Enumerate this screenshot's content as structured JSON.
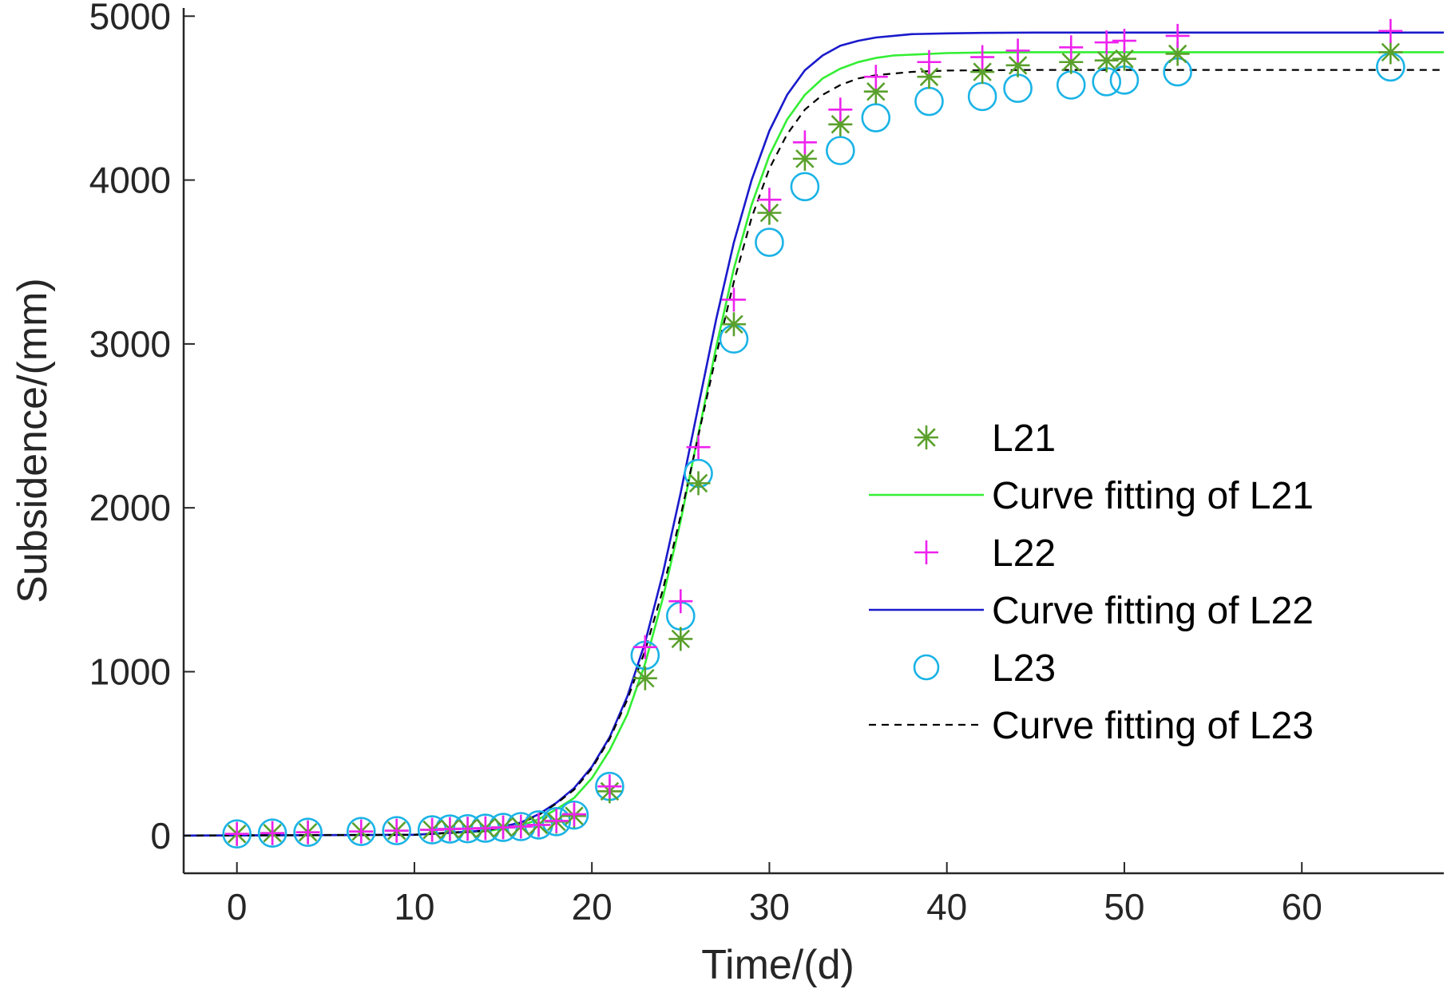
{
  "chart_data": {
    "type": "scatter",
    "xlabel": "Time/(d)",
    "ylabel": "Subsidence/(mm)",
    "xlim": [
      -3,
      68
    ],
    "ylim": [
      -230,
      5050
    ],
    "xticks": [
      0,
      10,
      20,
      30,
      40,
      50,
      60
    ],
    "yticks": [
      0,
      1000,
      2000,
      3000,
      4000,
      5000
    ],
    "grid": false,
    "legend_position": "center-right",
    "series": [
      {
        "name": "L21",
        "kind": "markers",
        "marker": "asterisk",
        "color": "#5aa02c",
        "x": [
          0,
          2,
          4,
          7,
          9,
          11,
          12,
          13,
          14,
          15,
          16,
          17,
          18,
          19,
          21,
          23,
          25,
          26,
          28,
          30,
          32,
          34,
          36,
          39,
          42,
          44,
          47,
          49,
          50,
          53,
          65
        ],
        "y": [
          10,
          15,
          20,
          25,
          30,
          35,
          40,
          42,
          45,
          50,
          55,
          65,
          85,
          120,
          270,
          960,
          1200,
          2150,
          3120,
          3800,
          4130,
          4340,
          4540,
          4630,
          4660,
          4700,
          4720,
          4730,
          4740,
          4770,
          4780
        ]
      },
      {
        "name": "Curve fitting of L21",
        "kind": "line",
        "style": "solid",
        "color": "#33ee33",
        "x": [
          -3,
          10,
          14,
          16,
          17,
          18,
          19,
          20,
          21,
          22,
          23,
          24,
          25,
          26,
          27,
          28,
          29,
          30,
          31,
          32,
          33,
          34,
          35,
          36,
          37,
          38,
          40,
          42,
          45,
          50,
          55,
          60,
          68
        ],
        "y": [
          0,
          5,
          25,
          60,
          100,
          160,
          230,
          350,
          520,
          740,
          1050,
          1450,
          1920,
          2450,
          2980,
          3460,
          3850,
          4150,
          4370,
          4520,
          4620,
          4680,
          4720,
          4745,
          4760,
          4765,
          4775,
          4778,
          4780,
          4780,
          4780,
          4780,
          4780
        ]
      },
      {
        "name": "L22",
        "kind": "markers",
        "marker": "plus",
        "color": "#ee22ee",
        "x": [
          0,
          2,
          4,
          7,
          9,
          11,
          12,
          13,
          14,
          15,
          16,
          17,
          18,
          19,
          21,
          23,
          25,
          26,
          28,
          30,
          32,
          34,
          36,
          39,
          42,
          44,
          47,
          49,
          50,
          53,
          65
        ],
        "y": [
          10,
          15,
          20,
          25,
          30,
          35,
          40,
          42,
          45,
          50,
          55,
          65,
          90,
          130,
          300,
          1150,
          1430,
          2370,
          3270,
          3880,
          4230,
          4430,
          4630,
          4720,
          4750,
          4790,
          4810,
          4840,
          4850,
          4880,
          4910
        ]
      },
      {
        "name": "Curve fitting of L22",
        "kind": "line",
        "style": "solid",
        "color": "#1a1acc",
        "x": [
          -3,
          10,
          14,
          16,
          17,
          18,
          19,
          20,
          21,
          22,
          23,
          24,
          25,
          26,
          27,
          28,
          29,
          30,
          31,
          32,
          33,
          34,
          35,
          36,
          37,
          38,
          40,
          42,
          45,
          50,
          55,
          60,
          68
        ],
        "y": [
          0,
          5,
          30,
          80,
          130,
          200,
          290,
          420,
          600,
          850,
          1180,
          1600,
          2090,
          2620,
          3150,
          3620,
          4000,
          4300,
          4520,
          4670,
          4760,
          4820,
          4850,
          4870,
          4880,
          4890,
          4895,
          4898,
          4900,
          4900,
          4900,
          4900,
          4900
        ]
      },
      {
        "name": "L23",
        "kind": "markers",
        "marker": "circle",
        "color": "#1ab3e6",
        "x": [
          0,
          2,
          4,
          7,
          9,
          11,
          12,
          13,
          14,
          15,
          16,
          17,
          18,
          19,
          21,
          23,
          25,
          26,
          28,
          30,
          32,
          34,
          36,
          39,
          42,
          44,
          47,
          49,
          50,
          53,
          65
        ],
        "y": [
          10,
          15,
          20,
          25,
          30,
          35,
          40,
          42,
          45,
          50,
          55,
          65,
          85,
          125,
          300,
          1100,
          1340,
          2210,
          3030,
          3620,
          3960,
          4180,
          4380,
          4480,
          4510,
          4560,
          4580,
          4600,
          4610,
          4660,
          4690
        ]
      },
      {
        "name": "Curve fitting of L23",
        "kind": "line",
        "style": "dashed",
        "color": "#000000",
        "x": [
          -3,
          10,
          14,
          16,
          17,
          18,
          19,
          20,
          21,
          22,
          23,
          24,
          25,
          26,
          27,
          28,
          29,
          30,
          31,
          32,
          33,
          34,
          35,
          36,
          37,
          38,
          40,
          42,
          45,
          50,
          55,
          60,
          68
        ],
        "y": [
          0,
          5,
          30,
          75,
          125,
          195,
          280,
          410,
          590,
          830,
          1130,
          1500,
          1950,
          2440,
          2930,
          3380,
          3770,
          4070,
          4280,
          4430,
          4520,
          4580,
          4620,
          4640,
          4650,
          4660,
          4668,
          4670,
          4672,
          4672,
          4672,
          4672,
          4672
        ]
      }
    ]
  }
}
